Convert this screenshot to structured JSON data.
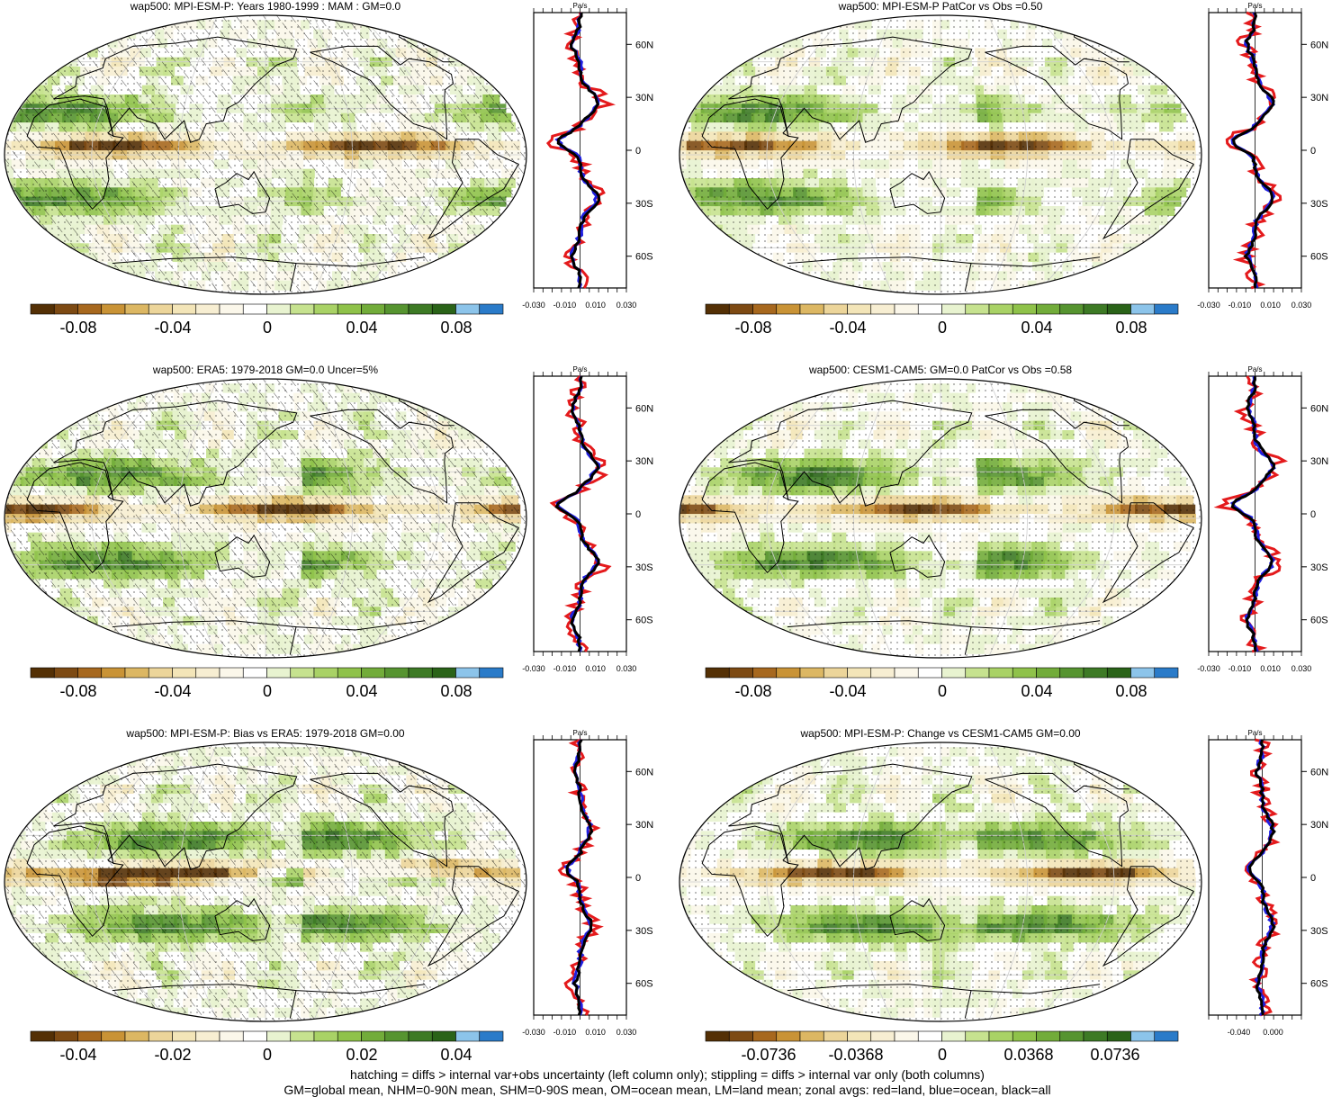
{
  "colors": {
    "scale": [
      "#543005",
      "#7d4a13",
      "#a7681e",
      "#c99336",
      "#dcb763",
      "#ecd59a",
      "#f3e5b8",
      "#f7eed2",
      "#fbf7ea",
      "#ffffff",
      "#e8f3d0",
      "#c6e28f",
      "#a9d266",
      "#8fc24a",
      "#72ac3a",
      "#569430",
      "#3d7a25",
      "#2a6318",
      "#8cc4ea",
      "#2a7bc9"
    ],
    "land": "#e41a1c",
    "ocean": "#1f1fe0",
    "all": "#000000"
  },
  "panels": [
    {
      "title": "wap500: MPI-ESM-P: Years 1980-1999 : MAM : GM=0.0",
      "colorbar_labels": [
        "-0.08",
        "-0.04",
        "0",
        "0.04",
        "0.08"
      ],
      "zonal_unit": "Pa/s",
      "zonal_xticks": [
        "-0.030",
        "-0.010",
        "0.010",
        "0.030"
      ],
      "zonal_yticks": [
        "60N",
        "30N",
        "0",
        "30S",
        "60S"
      ],
      "hatching": true,
      "stippling": true
    },
    {
      "title": "wap500: MPI-ESM-P PatCor vs Obs =0.50",
      "colorbar_labels": [
        "-0.08",
        "-0.04",
        "0",
        "0.04",
        "0.08"
      ],
      "zonal_unit": "Pa/s",
      "zonal_xticks": [
        "-0.030",
        "-0.010",
        "0.010",
        "0.030"
      ],
      "zonal_yticks": [
        "60N",
        "30N",
        "0",
        "30S",
        "60S"
      ],
      "hatching": false,
      "stippling": true
    },
    {
      "title": "wap500: ERA5: 1979-2018 GM=0.0 Uncer=5%",
      "colorbar_labels": [
        "-0.08",
        "-0.04",
        "0",
        "0.04",
        "0.08"
      ],
      "zonal_unit": "Pa/s",
      "zonal_xticks": [
        "-0.030",
        "-0.010",
        "0.010",
        "0.030"
      ],
      "zonal_yticks": [
        "60N",
        "30N",
        "0",
        "30S",
        "60S"
      ],
      "hatching": true,
      "stippling": true
    },
    {
      "title": "wap500: CESM1-CAM5: GM=0.0 PatCor vs Obs =0.58",
      "colorbar_labels": [
        "-0.08",
        "-0.04",
        "0",
        "0.04",
        "0.08"
      ],
      "zonal_unit": "Pa/s",
      "zonal_xticks": [
        "-0.030",
        "-0.010",
        "0.010",
        "0.030"
      ],
      "zonal_yticks": [
        "60N",
        "30N",
        "0",
        "30S",
        "60S"
      ],
      "hatching": false,
      "stippling": true
    },
    {
      "title": "wap500: MPI-ESM-P: Bias vs ERA5: 1979-2018 GM=0.00",
      "colorbar_labels": [
        "-0.04",
        "-0.02",
        "0",
        "0.02",
        "0.04"
      ],
      "zonal_unit": "Pa/s",
      "zonal_xticks": [
        "-0.030",
        "-0.010",
        "0.010",
        "0.030"
      ],
      "zonal_yticks": [
        "60N",
        "30N",
        "0",
        "30S",
        "60S"
      ],
      "hatching": true,
      "stippling": true
    },
    {
      "title": "wap500: MPI-ESM-P: Change vs CESM1-CAM5 GM=0.00",
      "colorbar_labels": [
        "-0.0736",
        "-0.0368",
        "0",
        "0.0368",
        "0.0736"
      ],
      "zonal_unit": "Pa/s",
      "zonal_xticks": [
        "-0.040",
        "0.000"
      ],
      "zonal_yticks": [
        "60N",
        "30N",
        "0",
        "30S",
        "60S"
      ],
      "hatching": false,
      "stippling": true
    }
  ],
  "footer": {
    "line1": "hatching = diffs > internal var+obs uncertainty (left column only); stippling = diffs > internal var only (both columns)",
    "line2": "GM=global mean, NHM=0-90N mean, SHM=0-90S mean, OM=ocean mean, LM=land mean; zonal avgs: red=land, blue=ocean, black=all"
  }
}
